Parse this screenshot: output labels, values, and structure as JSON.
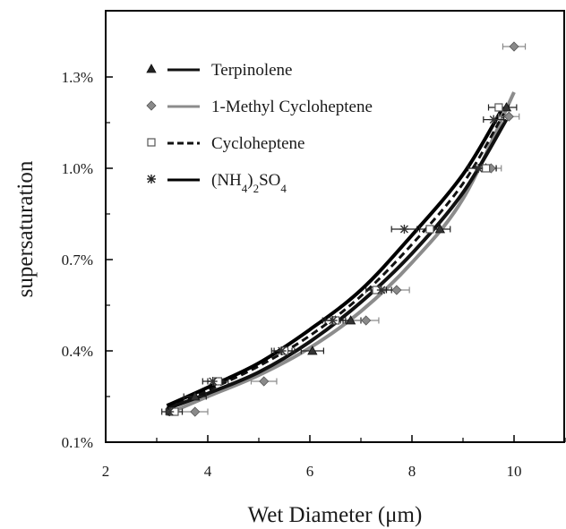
{
  "chart_data": {
    "type": "scatter",
    "xlabel": "Wet Diameter (μm)",
    "ylabel": "supersaturation",
    "xlim": [
      2,
      11
    ],
    "ylim": [
      0.1,
      1.5
    ],
    "x_ticks": [
      2,
      4,
      6,
      8,
      10
    ],
    "x_tick_labels": [
      "2",
      "4",
      "6",
      "8",
      "10"
    ],
    "y_ticks": [
      0.1,
      0.4,
      0.7,
      1.0,
      1.3
    ],
    "y_tick_labels": [
      "0.1%",
      "0.4%",
      "0.7%",
      "1.0%",
      "1.3%"
    ],
    "legend_placement": "top-left",
    "grid": false,
    "series": [
      {
        "name": "Terpinolene",
        "marker": "triangle",
        "line_style": "solid",
        "marker_color": "#333333",
        "line_color": "#111111",
        "points": [
          {
            "x": 3.3,
            "y": 0.2,
            "xerr": 0.12
          },
          {
            "x": 3.75,
            "y": 0.25,
            "xerr": 0.22
          },
          {
            "x": 6.05,
            "y": 0.4,
            "xerr": 0.22
          },
          {
            "x": 6.8,
            "y": 0.5,
            "xerr": 0.2
          },
          {
            "x": 8.55,
            "y": 0.8,
            "xerr": 0.2
          },
          {
            "x": 9.45,
            "y": 1.0,
            "xerr": 0.2
          },
          {
            "x": 9.85,
            "y": 1.2,
            "xerr": 0.2
          }
        ],
        "fit": [
          [
            3.2,
            0.21
          ],
          [
            4,
            0.26
          ],
          [
            5,
            0.33
          ],
          [
            6,
            0.43
          ],
          [
            7,
            0.56
          ],
          [
            8,
            0.72
          ],
          [
            9,
            0.92
          ],
          [
            9.85,
            1.16
          ]
        ]
      },
      {
        "name": "1-Methyl Cycloheptene",
        "marker": "diamond",
        "line_style": "solid",
        "marker_color": "#8a8a8a",
        "line_color": "#8c8c8c",
        "points": [
          {
            "x": 3.75,
            "y": 0.2,
            "xerr": 0.25
          },
          {
            "x": 5.1,
            "y": 0.3,
            "xerr": 0.25
          },
          {
            "x": 7.1,
            "y": 0.5,
            "xerr": 0.25
          },
          {
            "x": 7.7,
            "y": 0.6,
            "xerr": 0.25
          },
          {
            "x": 9.55,
            "y": 1.0,
            "xerr": 0.2
          },
          {
            "x": 9.9,
            "y": 1.17,
            "xerr": 0.2
          },
          {
            "x": 10.0,
            "y": 1.4,
            "xerr": 0.22
          }
        ],
        "fit": [
          [
            3.3,
            0.2
          ],
          [
            4,
            0.25
          ],
          [
            5,
            0.32
          ],
          [
            6,
            0.41
          ],
          [
            7,
            0.53
          ],
          [
            8,
            0.69
          ],
          [
            9,
            0.9
          ],
          [
            10,
            1.25
          ]
        ]
      },
      {
        "name": "Cycloheptene",
        "marker": "square",
        "line_style": "dashed",
        "marker_color": "#555555",
        "line_color": "#111111",
        "points": [
          {
            "x": 3.35,
            "y": 0.2,
            "xerr": 0.15
          },
          {
            "x": 4.2,
            "y": 0.3,
            "xerr": 0.2
          },
          {
            "x": 5.5,
            "y": 0.4,
            "xerr": 0.2
          },
          {
            "x": 6.5,
            "y": 0.5,
            "xerr": 0.2
          },
          {
            "x": 7.3,
            "y": 0.6,
            "xerr": 0.2
          },
          {
            "x": 8.35,
            "y": 0.8,
            "xerr": 0.2
          },
          {
            "x": 9.45,
            "y": 1.0,
            "xerr": 0.2
          },
          {
            "x": 9.7,
            "y": 1.2,
            "xerr": 0.2
          }
        ],
        "fit": [
          [
            3.2,
            0.21
          ],
          [
            4,
            0.27
          ],
          [
            5,
            0.35
          ],
          [
            6,
            0.45
          ],
          [
            7,
            0.58
          ],
          [
            8,
            0.75
          ],
          [
            9,
            0.95
          ],
          [
            9.8,
            1.18
          ]
        ]
      },
      {
        "name": "(NH4)2SO4",
        "marker": "asterisk",
        "line_style": "solid",
        "marker_color": "#333333",
        "line_color": "#000000",
        "points": [
          {
            "x": 3.25,
            "y": 0.2,
            "xerr": 0.15
          },
          {
            "x": 4.1,
            "y": 0.3,
            "xerr": 0.2
          },
          {
            "x": 5.45,
            "y": 0.4,
            "xerr": 0.2
          },
          {
            "x": 6.45,
            "y": 0.5,
            "xerr": 0.2
          },
          {
            "x": 7.4,
            "y": 0.6,
            "xerr": 0.2
          },
          {
            "x": 7.85,
            "y": 0.8,
            "xerr": 0.25
          },
          {
            "x": 9.3,
            "y": 1.0,
            "xerr": 0.2
          },
          {
            "x": 9.6,
            "y": 1.16,
            "xerr": 0.2
          }
        ],
        "fit": [
          [
            3.2,
            0.22
          ],
          [
            4,
            0.28
          ],
          [
            5,
            0.36
          ],
          [
            6,
            0.47
          ],
          [
            7,
            0.6
          ],
          [
            8,
            0.78
          ],
          [
            9,
            0.98
          ],
          [
            9.75,
            1.19
          ]
        ]
      }
    ],
    "legend": [
      {
        "label": "Terpinolene",
        "marker": "triangle",
        "line_style": "solid",
        "line_color": "#111111"
      },
      {
        "label": "1-Methyl Cycloheptene",
        "marker": "diamond",
        "line_style": "solid",
        "line_color": "#8c8c8c"
      },
      {
        "label": "Cycloheptene",
        "marker": "square",
        "line_style": "dashed",
        "line_color": "#111111"
      },
      {
        "label_parts": [
          "(NH",
          "4",
          ")",
          "2",
          "SO",
          "4"
        ],
        "marker": "asterisk",
        "line_style": "solid",
        "line_color": "#000000"
      }
    ]
  }
}
